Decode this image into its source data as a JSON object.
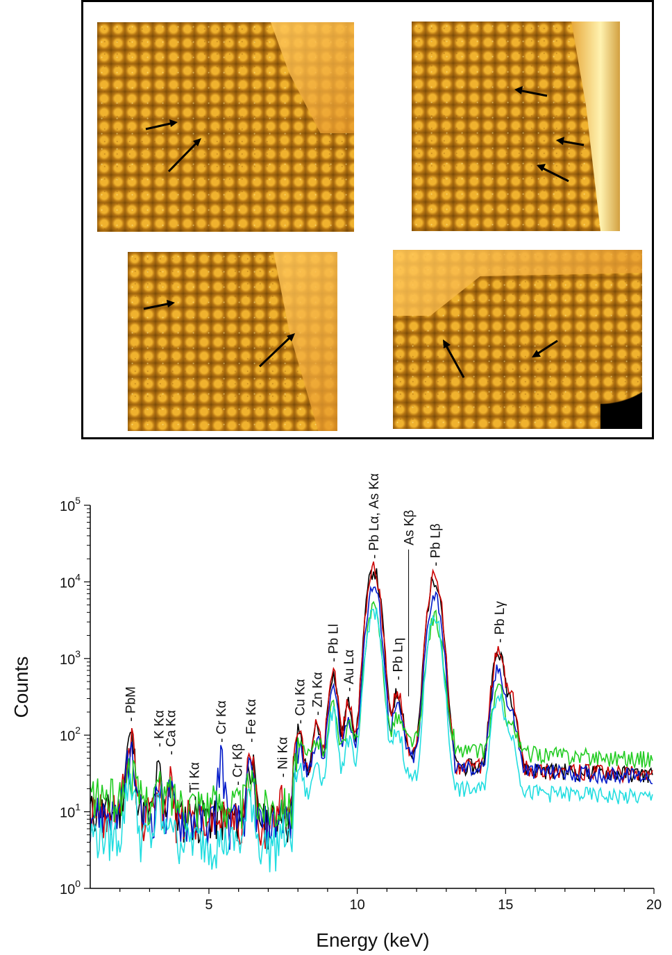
{
  "photos": [
    {
      "name": "photo-top-left",
      "arrows": 2
    },
    {
      "name": "photo-top-right",
      "arrows": 3
    },
    {
      "name": "photo-bottom-left",
      "arrows": 2
    },
    {
      "name": "photo-bottom-right",
      "arrows": 2
    }
  ],
  "chart_data": {
    "type": "line",
    "title": "",
    "xlabel": "Energy (keV)",
    "ylabel": "Counts",
    "xlim": [
      1,
      20
    ],
    "ylim_log10": [
      0,
      5
    ],
    "y_scale": "log",
    "grid": false,
    "x_ticks": [
      "5",
      "10",
      "15",
      "20"
    ],
    "y_ticks": [
      {
        "base": "10",
        "exp": "0"
      },
      {
        "base": "10",
        "exp": "1"
      },
      {
        "base": "10",
        "exp": "2"
      },
      {
        "base": "10",
        "exp": "3"
      },
      {
        "base": "10",
        "exp": "4"
      },
      {
        "base": "10",
        "exp": "5"
      }
    ],
    "peak_labels": [
      {
        "text": "- PbM",
        "energy": 2.35,
        "counts": 150
      },
      {
        "text": "- K Kα",
        "energy": 3.3,
        "counts": 70
      },
      {
        "text": "- Ca Kα",
        "energy": 3.7,
        "counts": 55
      },
      {
        "text": "- Ti Kα",
        "energy": 4.5,
        "counts": 14
      },
      {
        "text": "- Cr Kα",
        "energy": 5.4,
        "counts": 80
      },
      {
        "text": "- Cr Kβ",
        "energy": 5.95,
        "counts": 22
      },
      {
        "text": "- Fe Kα",
        "energy": 6.4,
        "counts": 80
      },
      {
        "text": "- Ni Kα",
        "energy": 7.47,
        "counts": 28
      },
      {
        "text": "- Cu Kα",
        "energy": 8.05,
        "counts": 140
      },
      {
        "text": "- Zn Kα",
        "energy": 8.64,
        "counts": 180
      },
      {
        "text": "- Pb Ll",
        "energy": 9.18,
        "counts": 900
      },
      {
        "text": "- Au Lα",
        "energy": 9.7,
        "counts": 370
      },
      {
        "text": "- Pb Lα, As Kα",
        "energy": 10.55,
        "counts": 20000
      },
      {
        "text": "- Pb Lη",
        "energy": 11.35,
        "counts": 520
      },
      {
        "text": "As Kβ",
        "energy": 11.73,
        "counts": 30000
      },
      {
        "text": "- Pb Lβ",
        "energy": 12.62,
        "counts": 16000
      },
      {
        "text": "- Pb Lγ",
        "energy": 14.78,
        "counts": 1600
      }
    ],
    "series": [
      {
        "name": "black",
        "color": "#000000",
        "scale": 1.0,
        "bg": 1.0
      },
      {
        "name": "red",
        "color": "#cc0000",
        "scale": 1.05,
        "bg": 1.0
      },
      {
        "name": "blue",
        "color": "#0018c8",
        "scale": 0.6,
        "bg": 0.95
      },
      {
        "name": "green",
        "color": "#22cc22",
        "scale": 0.3,
        "bg": 1.6
      },
      {
        "name": "cyan",
        "color": "#22dde0",
        "scale": 0.3,
        "bg": 0.5
      }
    ],
    "peaks": [
      {
        "energy": 2.35,
        "height": 90,
        "width": 0.12
      },
      {
        "energy": 3.3,
        "height": 28,
        "width": 0.08
      },
      {
        "energy": 3.7,
        "height": 22,
        "width": 0.07
      },
      {
        "energy": 5.41,
        "height": 0,
        "width": 0.08
      },
      {
        "energy": 6.4,
        "height": 50,
        "width": 0.1
      },
      {
        "energy": 7.47,
        "height": 8,
        "width": 0.08
      },
      {
        "energy": 8.04,
        "height": 80,
        "width": 0.1
      },
      {
        "energy": 8.64,
        "height": 100,
        "width": 0.1
      },
      {
        "energy": 9.18,
        "height": 600,
        "width": 0.12
      },
      {
        "energy": 9.71,
        "height": 220,
        "width": 0.12
      },
      {
        "energy": 10.55,
        "height": 14500,
        "width": 0.17
      },
      {
        "energy": 11.35,
        "height": 300,
        "width": 0.15
      },
      {
        "energy": 12.61,
        "height": 11500,
        "width": 0.17
      },
      {
        "energy": 14.76,
        "height": 1150,
        "width": 0.16
      },
      {
        "energy": 15.2,
        "height": 250,
        "width": 0.15
      }
    ]
  }
}
